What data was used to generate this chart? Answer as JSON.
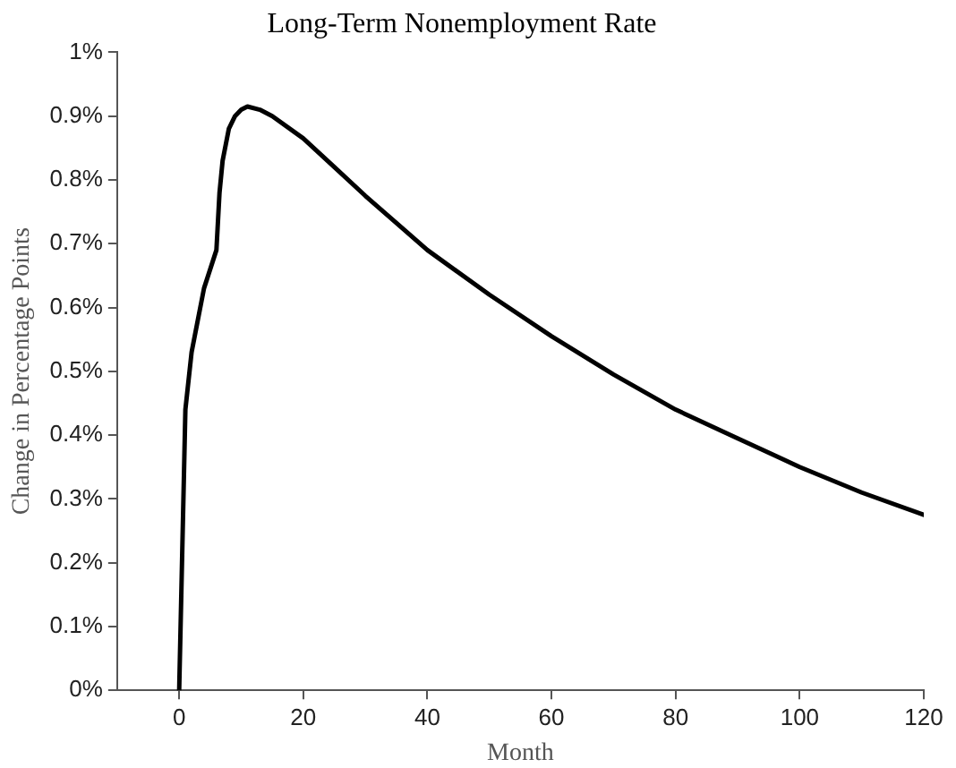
{
  "chart_data": {
    "type": "line",
    "title": "Long-Term Nonemployment Rate",
    "xlabel": "Month",
    "ylabel": "Change in Percentage Points",
    "xlim": [
      -10,
      120
    ],
    "xticks": [
      0,
      20,
      40,
      60,
      80,
      100,
      120
    ],
    "ylim": [
      0,
      1
    ],
    "yticks": [
      {
        "value": 0,
        "label": "0%"
      },
      {
        "value": 0.1,
        "label": "0.1%"
      },
      {
        "value": 0.2,
        "label": "0.2%"
      },
      {
        "value": 0.3,
        "label": "0.3%"
      },
      {
        "value": 0.4,
        "label": "0.4%"
      },
      {
        "value": 0.5,
        "label": "0.5%"
      },
      {
        "value": 0.6,
        "label": "0.6%"
      },
      {
        "value": 0.7,
        "label": "0.7%"
      },
      {
        "value": 0.8,
        "label": "0.8%"
      },
      {
        "value": 0.9,
        "label": "0.9%"
      },
      {
        "value": 1,
        "label": "1%"
      }
    ],
    "grid": false,
    "marker": "none",
    "line_style": "solid",
    "series": [
      {
        "color": "#000000",
        "x": [
          0,
          1,
          2,
          3,
          4,
          6,
          6.5,
          7,
          8,
          9,
          10,
          11,
          13,
          15,
          20,
          25,
          30,
          40,
          50,
          60,
          70,
          80,
          90,
          100,
          110,
          120
        ],
        "values": [
          0,
          0.44,
          0.53,
          0.58,
          0.63,
          0.69,
          0.78,
          0.83,
          0.88,
          0.9,
          0.91,
          0.915,
          0.91,
          0.9,
          0.865,
          0.82,
          0.775,
          0.69,
          0.62,
          0.555,
          0.495,
          0.44,
          0.395,
          0.35,
          0.31,
          0.275
        ]
      }
    ]
  }
}
